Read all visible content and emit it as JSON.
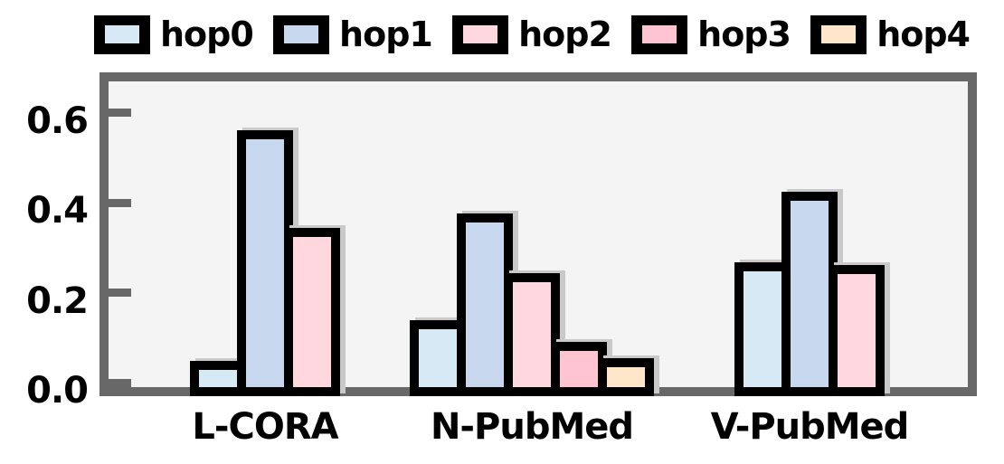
{
  "figure": {
    "background": "#ffffff",
    "plot_background": "#f4f4f5",
    "spine_color": "#686868",
    "bar_edge_color": "#000000",
    "bar_shadow_color": "#c9c9c9",
    "text_color": "#000000"
  },
  "chart_data": {
    "type": "bar",
    "categories": [
      "L-CORA",
      "N-PubMed",
      "V-PubMed"
    ],
    "series": [
      {
        "name": "hop0",
        "color": "#d7e9f4",
        "values": [
          0.058,
          0.148,
          0.278
        ]
      },
      {
        "name": "hop1",
        "color": "#c6d7ee",
        "values": [
          0.57,
          0.385,
          0.435
        ]
      },
      {
        "name": "hop2",
        "color": "#ffd7de",
        "values": [
          0.353,
          0.253,
          0.272
        ]
      },
      {
        "name": "hop3",
        "color": "#ffc4d1",
        "values": [
          null,
          0.1,
          null
        ]
      },
      {
        "name": "hop4",
        "color": "#ffe5c9",
        "values": [
          null,
          0.065,
          null
        ]
      }
    ],
    "title": "",
    "xlabel": "",
    "ylabel": "",
    "yticks": [
      "0.0",
      "0.2",
      "0.4",
      "0.6"
    ],
    "ylim": [
      0,
      0.695
    ],
    "grid": false,
    "legend_position": "top"
  }
}
